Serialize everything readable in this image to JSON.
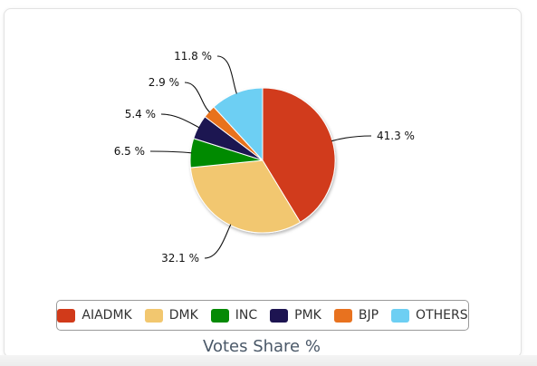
{
  "chart_data": {
    "type": "pie",
    "title": "Votes Share %",
    "series": [
      {
        "name": "AIADMK",
        "value": 41.3,
        "label": "41.3 %",
        "color": "#d13a1a"
      },
      {
        "name": "DMK",
        "value": 32.1,
        "label": "32.1 %",
        "color": "#f2c76f"
      },
      {
        "name": "INC",
        "value": 6.5,
        "label": "6.5 %",
        "color": "#058a05"
      },
      {
        "name": "PMK",
        "value": 5.4,
        "label": "5.4 %",
        "color": "#1d1451"
      },
      {
        "name": "BJP",
        "value": 2.9,
        "label": "2.9 %",
        "color": "#e8721f"
      },
      {
        "name": "OTHERS",
        "value": 11.8,
        "label": "11.8 %",
        "color": "#6dcff3"
      }
    ],
    "legend_position": "bottom"
  }
}
